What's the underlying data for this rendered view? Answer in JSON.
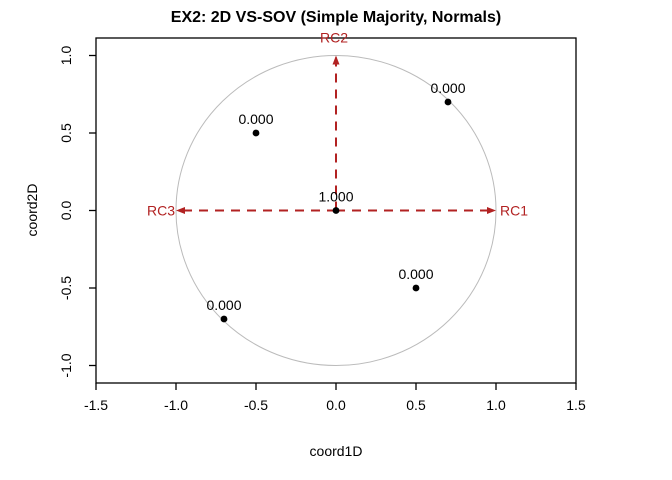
{
  "window": {
    "background": "#ffffff"
  },
  "colors": {
    "title_text": "#000000",
    "axis_text": "#000000",
    "box_stroke": "#000000",
    "circle_gray": "#bbbbbb",
    "arrow_red": "#b22222",
    "point_black": "#000000"
  },
  "chart_data": {
    "type": "scatter",
    "title": "EX2: 2D VS-SOV (Simple Majority, Normals)",
    "xlabel": "coord1D",
    "ylabel": "coord2D",
    "xlim": [
      -1.5,
      1.5
    ],
    "ylim": [
      -1.11,
      1.11
    ],
    "grid": false,
    "legend": null,
    "unit_circle": {
      "present": true,
      "radius": 1.0,
      "center": [
        0,
        0
      ]
    },
    "x_ticks": [
      {
        "value": -1.5,
        "label": "-1.5"
      },
      {
        "value": -1.0,
        "label": "-1.0"
      },
      {
        "value": -0.5,
        "label": "-0.5"
      },
      {
        "value": 0.0,
        "label": "0.0"
      },
      {
        "value": 0.5,
        "label": "0.5"
      },
      {
        "value": 1.0,
        "label": "1.0"
      },
      {
        "value": 1.5,
        "label": "1.5"
      }
    ],
    "y_ticks": [
      {
        "value": -1.0,
        "label": "-1.0"
      },
      {
        "value": -0.5,
        "label": "-0.5"
      },
      {
        "value": 0.0,
        "label": "0.0"
      },
      {
        "value": 0.5,
        "label": "0.5"
      },
      {
        "value": 1.0,
        "label": "1.0"
      }
    ],
    "arrows": [
      {
        "name": "RC1",
        "from": [
          0,
          0
        ],
        "to": [
          1.0,
          0.0
        ],
        "label": "RC1",
        "style": "dashed"
      },
      {
        "name": "RC2",
        "from": [
          0,
          0
        ],
        "to": [
          0.0,
          1.0
        ],
        "label": "RC2",
        "style": "dashed"
      },
      {
        "name": "RC3",
        "from": [
          0,
          0
        ],
        "to": [
          -1.0,
          0.0
        ],
        "label": "RC3",
        "style": "dashed"
      }
    ],
    "points": [
      {
        "x": 0.7,
        "y": 0.7,
        "label": "0.000"
      },
      {
        "x": -0.5,
        "y": 0.5,
        "label": "0.000"
      },
      {
        "x": 0.0,
        "y": 0.0,
        "label": "1.000"
      },
      {
        "x": 0.5,
        "y": -0.5,
        "label": "0.000"
      },
      {
        "x": -0.7,
        "y": -0.7,
        "label": "0.000"
      }
    ]
  }
}
